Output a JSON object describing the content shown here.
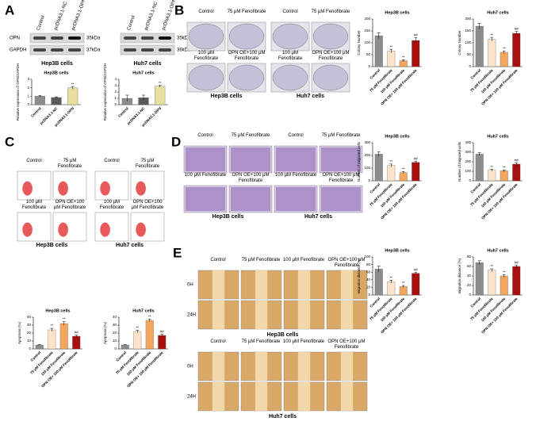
{
  "figure": {
    "letters": [
      "A",
      "B",
      "C",
      "D",
      "E"
    ],
    "lanes": [
      "Control",
      "pcDNA3.1-NC",
      "pcDNA3.1-OPN"
    ],
    "bands": [
      "OPN",
      "GAPDH"
    ],
    "kda_hep3b": [
      "35kDa",
      "37kDa"
    ],
    "kda_huh7": [
      "35kDa",
      "36kDa"
    ],
    "cells": [
      "Hep3B cells",
      "Huh7 cells"
    ],
    "groups": [
      "Control",
      "75 μM Fenofibrate",
      "100 μM Fenofibrate",
      "OPN OE+100 μM Fenofibrate"
    ],
    "times": [
      "0H",
      "24H"
    ]
  },
  "chart_data": [
    {
      "type": "bar",
      "title": "Hep3B cells",
      "ylabel": "Relative expression of OPN/GAPDH",
      "categories": [
        "Control",
        "pcDNA3.1-NC",
        "pcDNA3.1-OPN"
      ],
      "values": [
        1.0,
        0.85,
        2.0
      ],
      "errors": [
        0.1,
        0.08,
        0.15
      ],
      "colors": [
        "#8c8c8c",
        "#5a5a5a",
        "#e6dfa0"
      ],
      "annotations": [
        null,
        null,
        "**"
      ],
      "ylim": [
        0,
        3
      ],
      "yticks": [
        0,
        1,
        2,
        3
      ]
    },
    {
      "type": "bar",
      "title": "Huh7 cells",
      "ylabel": "Relative expression of OPN/GAPDH",
      "categories": [
        "Control",
        "pcDNA3.1-NC",
        "pcDNA3.1-OPN"
      ],
      "values": [
        1.0,
        1.1,
        2.9
      ],
      "errors": [
        0.5,
        0.4,
        0.15
      ],
      "colors": [
        "#8c8c8c",
        "#5a5a5a",
        "#e6dfa0"
      ],
      "annotations": [
        null,
        null,
        "**"
      ],
      "ylim": [
        0,
        4
      ],
      "yticks": [
        0,
        1,
        2,
        3,
        4
      ]
    },
    {
      "type": "bar",
      "title": "Hep3B cells",
      "ylabel": "Colony Number",
      "categories": [
        "Control",
        "75 μM Fenofibrate",
        "100 μM Fenofibrate",
        "OPN OE+ 100 μM Fenofibrate"
      ],
      "values": [
        130,
        65,
        25,
        110
      ],
      "errors": [
        12,
        8,
        4,
        12
      ],
      "colors": [
        "#8c8c8c",
        "#fde3c8",
        "#f2a65e",
        "#a80f0f"
      ],
      "annotations": [
        null,
        "**",
        "**",
        "##"
      ],
      "ylim": [
        0,
        200
      ],
      "yticks": [
        0,
        50,
        100,
        150,
        200
      ]
    },
    {
      "type": "bar",
      "title": "Huh7 cells",
      "ylabel": "Colony Number",
      "categories": [
        "Control",
        "75 μM Fenofibrate",
        "100 μM Fenofibrate",
        "OPN OE+ 100 μM Fenofibrate"
      ],
      "values": [
        170,
        115,
        60,
        140
      ],
      "errors": [
        12,
        8,
        6,
        8
      ],
      "colors": [
        "#8c8c8c",
        "#fde3c8",
        "#f2a65e",
        "#a80f0f"
      ],
      "annotations": [
        null,
        "**",
        "**",
        "##"
      ],
      "ylim": [
        0,
        200
      ],
      "yticks": [
        0,
        50,
        100,
        150,
        200
      ]
    },
    {
      "type": "bar",
      "title": "Hep3B cells",
      "ylabel": "Apoptosis (%)",
      "categories": [
        "Control",
        "75 μM Fenofibrate",
        "100 μM Fenofibrate",
        "OPN OE+ 100 μM Fenofibrate"
      ],
      "values": [
        5,
        24,
        32,
        16
      ],
      "errors": [
        0.5,
        2,
        2.5,
        1.5
      ],
      "colors": [
        "#8c8c8c",
        "#fde3c8",
        "#f2a65e",
        "#a80f0f"
      ],
      "annotations": [
        null,
        "**",
        "**",
        "##"
      ],
      "ylim": [
        0,
        40
      ],
      "yticks": [
        0,
        10,
        20,
        30,
        40
      ]
    },
    {
      "type": "bar",
      "title": "Huh7 cells",
      "ylabel": "Apoptosis (%)",
      "categories": [
        "Control",
        "75 μM Fenofibrate",
        "100 μM Fenofibrate",
        "OPN OE+ 100 μM Fenofibrate"
      ],
      "values": [
        5,
        22,
        36,
        17
      ],
      "errors": [
        0.5,
        1.5,
        1.5,
        1.5
      ],
      "colors": [
        "#8c8c8c",
        "#fde3c8",
        "#f2a65e",
        "#a80f0f"
      ],
      "annotations": [
        null,
        "**",
        "**",
        "##"
      ],
      "ylim": [
        0,
        40
      ],
      "yticks": [
        0,
        10,
        20,
        30,
        40
      ]
    },
    {
      "type": "bar",
      "title": "Hep3B cells",
      "ylabel": "Number of migrated cells",
      "categories": [
        "Control",
        "75 μM Fenofibrate",
        "100 μM Fenofibrate",
        "OPN OE+ 100 μM Fenofibrate"
      ],
      "values": [
        210,
        120,
        65,
        145
      ],
      "errors": [
        20,
        12,
        8,
        10
      ],
      "colors": [
        "#8c8c8c",
        "#fde3c8",
        "#f2a65e",
        "#a80f0f"
      ],
      "annotations": [
        null,
        "**",
        "**",
        "##"
      ],
      "ylim": [
        0,
        300
      ],
      "yticks": [
        0,
        100,
        200,
        300
      ]
    },
    {
      "type": "bar",
      "title": "Huh7 cells",
      "ylabel": "Number of migrated cells",
      "categories": [
        "Control",
        "75 μM Fenofibrate",
        "100 μM Fenofibrate",
        "OPN OE+ 100 μM Fenofibrate"
      ],
      "values": [
        280,
        110,
        105,
        175
      ],
      "errors": [
        15,
        10,
        10,
        15
      ],
      "colors": [
        "#8c8c8c",
        "#fde3c8",
        "#f2a65e",
        "#a80f0f"
      ],
      "annotations": [
        null,
        "**",
        "**",
        "##"
      ],
      "ylim": [
        0,
        400
      ],
      "yticks": [
        0,
        100,
        200,
        300,
        400
      ]
    },
    {
      "type": "bar",
      "title": "Hep3B cells",
      "ylabel": "migration distance (%)",
      "categories": [
        "Control",
        "75 μM Fenofibrate",
        "100 μM Fenofibrate",
        "OPN OE+ 100 μM Fenofibrate"
      ],
      "values": [
        68,
        35,
        22,
        57
      ],
      "errors": [
        8,
        4,
        3,
        3
      ],
      "colors": [
        "#8c8c8c",
        "#fde3c8",
        "#f2a65e",
        "#a80f0f"
      ],
      "annotations": [
        null,
        "**",
        "**",
        "##"
      ],
      "ylim": [
        0,
        100
      ],
      "yticks": [
        0,
        20,
        40,
        60,
        80,
        100
      ]
    },
    {
      "type": "bar",
      "title": "Huh7 cells",
      "ylabel": "migration distance (%)",
      "categories": [
        "Control",
        "75 μM Fenofibrate",
        "100 μM Fenofibrate",
        "OPN OE+ 100 μM Fenofibrate"
      ],
      "values": [
        68,
        52,
        40,
        60
      ],
      "errors": [
        4,
        3,
        3,
        3
      ],
      "colors": [
        "#8c8c8c",
        "#fde3c8",
        "#f2a65e",
        "#a80f0f"
      ],
      "annotations": [
        null,
        "**",
        "**",
        "##"
      ],
      "ylim": [
        0,
        80
      ],
      "yticks": [
        0,
        20,
        40,
        60,
        80
      ]
    }
  ]
}
